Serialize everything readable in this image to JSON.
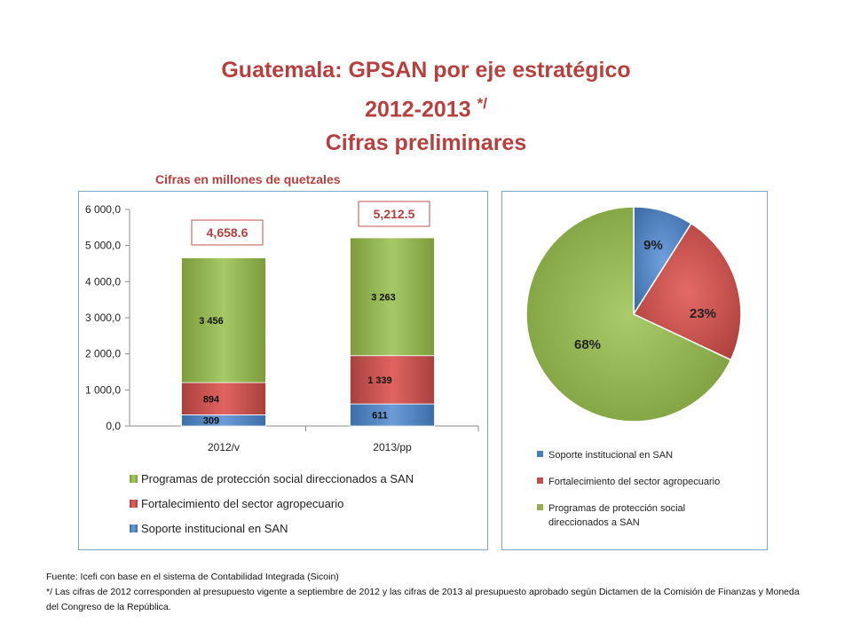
{
  "title": {
    "line1": "Guatemala: GPSAN por eje estratégico",
    "line2": "2012-2013",
    "line2_sup": "*/",
    "line3": "Cifras preliminares"
  },
  "units_label": "Cifras en millones de quetzales",
  "colors": {
    "title": "#b6403e",
    "soporte": "#4a7ebb",
    "fortalecimiento": "#c0504d",
    "programas": "#8fb04a",
    "total_box_border": "#c0504d"
  },
  "chart_data": [
    {
      "type": "bar",
      "stacked": true,
      "categories": [
        "2012/v",
        "2013/pp"
      ],
      "series": [
        {
          "name": "Soporte institucional en SAN",
          "values": [
            309,
            611
          ],
          "labels": [
            "309",
            "611"
          ],
          "color": "#4a7ebb"
        },
        {
          "name": "Fortalecimiento del sector agropecuario",
          "values": [
            894,
            1339
          ],
          "labels": [
            "894",
            "1 339"
          ],
          "color": "#c0504d"
        },
        {
          "name": "Programas de protección social direccionados a SAN",
          "values": [
            3456,
            3263
          ],
          "labels": [
            "3 456",
            "3 263"
          ],
          "color": "#8fb04a"
        }
      ],
      "totals": [
        "4,658.6",
        "5,212.5"
      ],
      "ylim": [
        0,
        6000
      ],
      "yticks": [
        "0,0",
        "1 000,0",
        "2 000,0",
        "3 000,0",
        "4 000,0",
        "5 000,0",
        "6 000,0"
      ],
      "legend": [
        "Programas de protección social direccionados a SAN",
        "Fortalecimiento del sector agropecuario",
        "Soporte institucional en SAN"
      ],
      "legend_position": "bottom"
    },
    {
      "type": "pie",
      "slices": [
        {
          "name": "Soporte institucional en SAN",
          "value": 9,
          "label": "9%",
          "color": "#4a7ebb"
        },
        {
          "name": "Fortalecimiento del sector agropecuario",
          "value": 23,
          "label": "23%",
          "color": "#c0504d"
        },
        {
          "name": "Programas de protección social direccionados a SAN",
          "value": 68,
          "label": "68%",
          "color": "#8fb04a"
        }
      ],
      "legend": [
        "Soporte institucional en SAN",
        "Fortalecimiento del sector agropecuario",
        "Programas de protección social direccionados a SAN"
      ],
      "legend_wrapped_last": [
        "Programas de protección social",
        "direccionados a SAN"
      ],
      "legend_position": "bottom"
    }
  ],
  "footnote": {
    "line1": "Fuente:  Icefi con base en el sistema de Contabilidad Integrada (Sicoin)",
    "line2": "*/  Las cifras de 2012 corresponden al presupuesto vigente a septiembre de 2012 y las cifras de 2013 al presupuesto aprobado según Dictamen de la Comisión de Finanzas y Moneda del Congreso de la República."
  }
}
